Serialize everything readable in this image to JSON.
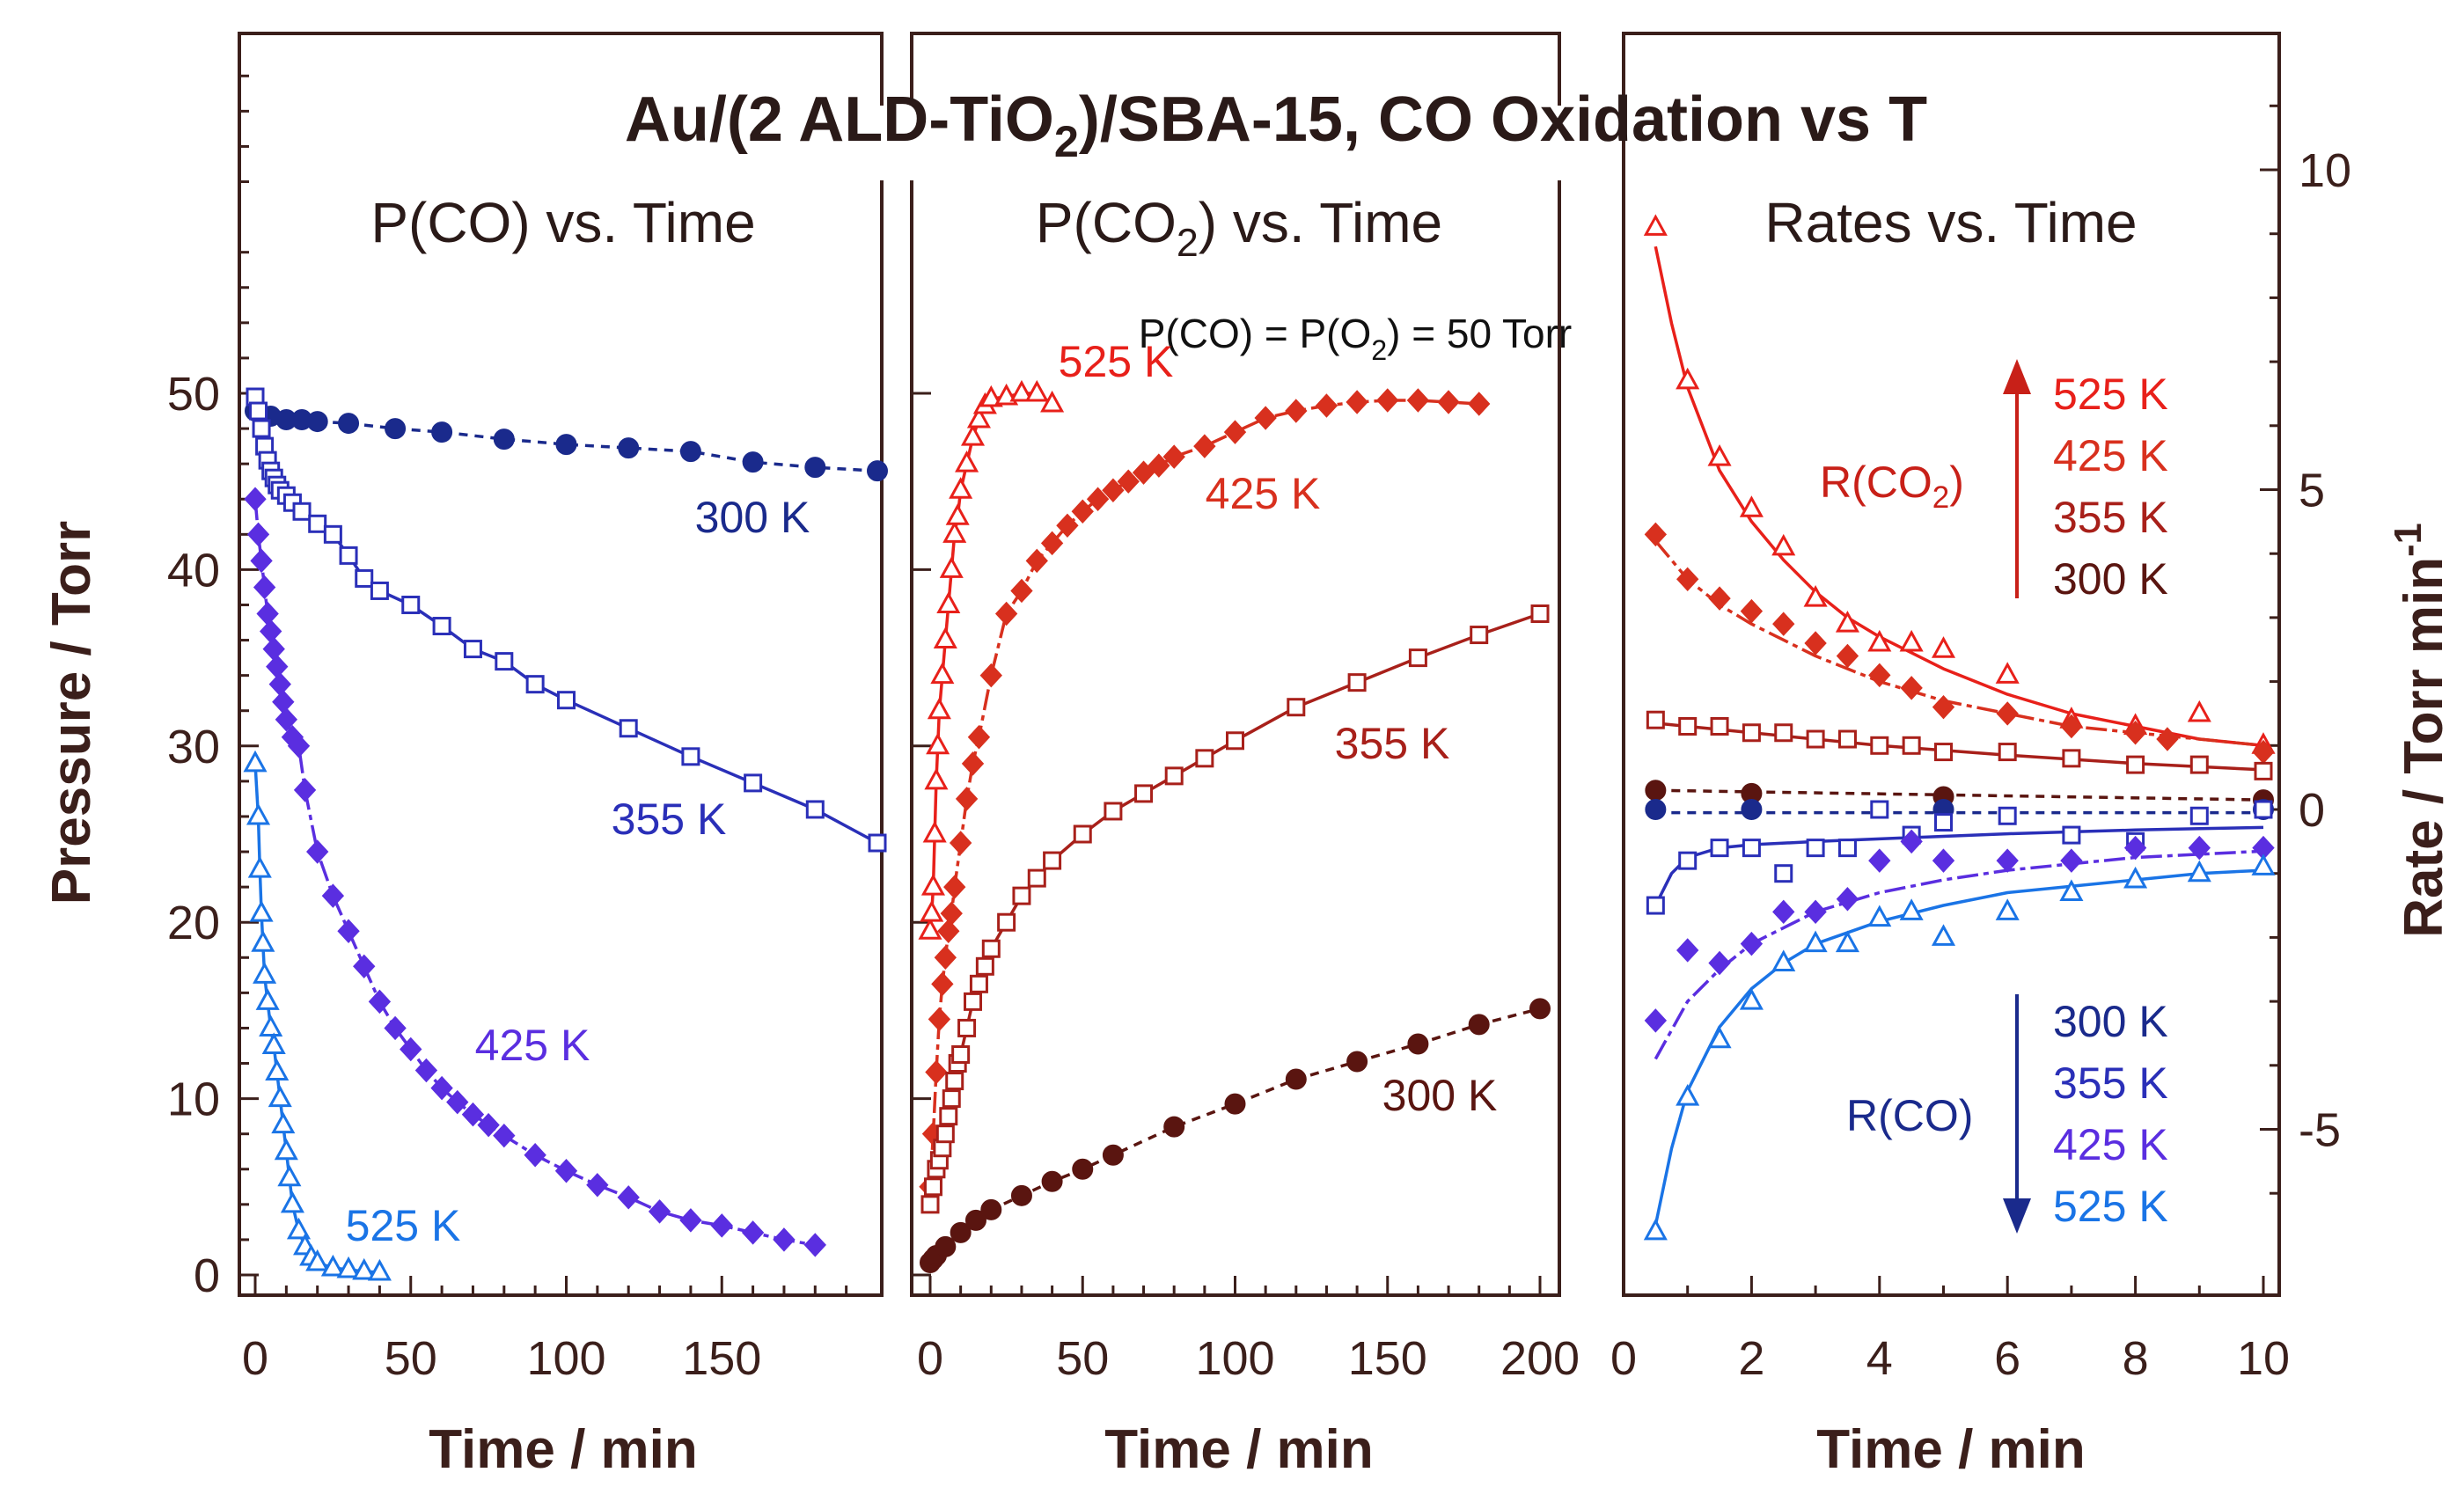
{
  "figure": {
    "title_pre": "Au/(2 ALD-TiO",
    "title_sub": "2",
    "title_post": ")/SBA-15, CO Oxidation vs T",
    "condition_pre": "P(CO) = P(O",
    "condition_sub": "2",
    "condition_post": ") = 50 Torr",
    "left_ylabel": "Pressure / Torr",
    "right_ylabel_pre": "Rate / Torr min",
    "right_ylabel_sup": "-1",
    "legend_co2_pre": "R(CO",
    "legend_co2_sub": "2",
    "legend_co2_post": ")",
    "legend_co2_temps": [
      "525 K",
      "425 K",
      "355 K",
      "300 K"
    ],
    "legend_co": "R(CO)",
    "legend_co_temps": [
      "300 K",
      "355 K",
      "425 K",
      "525 K"
    ]
  },
  "colors": {
    "axis": "#3b1f1b",
    "co_300": "#1a2a8c",
    "co_355": "#2a2fb8",
    "co_425": "#5a2ee0",
    "co_525": "#1a74e6",
    "co2_525": "#e8201a",
    "co2_425": "#d8301e",
    "co2_355": "#a8201a",
    "co2_300": "#5a1510"
  },
  "chart_data": [
    {
      "type": "line",
      "title": "P(CO) vs. Time",
      "xlabel": "Time / min",
      "ylabel": "Pressure / Torr",
      "xlim": [
        -5,
        200
      ],
      "ylim": [
        -1,
        70
      ],
      "xticks": [
        "0",
        "50",
        "100",
        "150"
      ],
      "yticks": [
        "0",
        "10",
        "20",
        "30",
        "40",
        "50"
      ],
      "series": [
        {
          "name": "300 K",
          "label": "300 K",
          "marker": "circle",
          "color": "#1a2a8c",
          "dash": "10,8",
          "x": [
            0,
            2,
            5,
            10,
            15,
            20,
            30,
            45,
            60,
            80,
            100,
            120,
            140,
            160,
            180,
            200
          ],
          "y": [
            49,
            48.8,
            48.7,
            48.5,
            48.5,
            48.4,
            48.3,
            48.0,
            47.8,
            47.4,
            47.1,
            46.9,
            46.7,
            46.1,
            45.8,
            45.6
          ]
        },
        {
          "name": "355 K",
          "label": "355 K",
          "marker": "square",
          "color": "#2a2fb8",
          "dash": "",
          "x": [
            0,
            1,
            2,
            3,
            4,
            5,
            6,
            7,
            8,
            10,
            12,
            15,
            20,
            25,
            30,
            35,
            40,
            50,
            60,
            70,
            80,
            90,
            100,
            120,
            140,
            160,
            180,
            200
          ],
          "y": [
            49.8,
            49.0,
            48.0,
            47.0,
            46.2,
            45.6,
            45.2,
            44.8,
            44.5,
            44.2,
            43.8,
            43.3,
            42.6,
            42.0,
            40.8,
            39.5,
            38.8,
            38.0,
            36.8,
            35.5,
            34.8,
            33.5,
            32.6,
            31.0,
            29.4,
            27.9,
            26.4,
            24.5
          ]
        },
        {
          "name": "425 K",
          "label": "425 K",
          "marker": "diamond",
          "color": "#5a2ee0",
          "dash": "24,6,6,6",
          "x": [
            0,
            1,
            2,
            3,
            4,
            5,
            6,
            7,
            8,
            9,
            10,
            12,
            14,
            16,
            20,
            25,
            30,
            35,
            40,
            45,
            50,
            55,
            60,
            65,
            70,
            75,
            80,
            90,
            100,
            110,
            120,
            130,
            140,
            150,
            160,
            170,
            180
          ],
          "y": [
            44,
            42,
            40.5,
            39,
            37.5,
            36.5,
            35.5,
            34.5,
            33.5,
            32.5,
            31.5,
            30.5,
            30,
            27.5,
            24,
            21.5,
            19.5,
            17.5,
            15.5,
            14.0,
            12.8,
            11.6,
            10.6,
            9.8,
            9.1,
            8.5,
            7.9,
            6.8,
            5.9,
            5.1,
            4.4,
            3.6,
            3.1,
            2.8,
            2.4,
            2.0,
            1.7
          ]
        },
        {
          "name": "525 K",
          "label": "525 K",
          "marker": "triangle",
          "color": "#1a74e6",
          "dash": "",
          "x": [
            0,
            1,
            1.5,
            2,
            2.5,
            3,
            4,
            5,
            6,
            7,
            8,
            9,
            10,
            11,
            12,
            14,
            16,
            18,
            20,
            25,
            30,
            35,
            40
          ],
          "y": [
            29,
            26,
            23,
            20.5,
            18.8,
            17,
            15.5,
            14,
            13,
            11.5,
            10,
            8.5,
            7,
            5.5,
            4,
            2.5,
            1.6,
            1.0,
            0.7,
            0.4,
            0.3,
            0.2,
            0.15
          ]
        }
      ]
    },
    {
      "type": "line",
      "title": "P(CO2) vs. Time",
      "title_pre": "P(CO",
      "title_sub": "2",
      "title_post": ") vs. Time",
      "xlabel": "Time / min",
      "xlim": [
        -5,
        200
      ],
      "ylim": [
        -1,
        70
      ],
      "xticks": [
        "0",
        "50",
        "100",
        "150",
        "200"
      ],
      "series": [
        {
          "name": "525 K",
          "label": "525 K",
          "marker": "triangle",
          "color": "#e8201a",
          "dash": "",
          "x": [
            0,
            0.5,
            1,
            1.5,
            2,
            2.5,
            3,
            4,
            5,
            6,
            7,
            8,
            9,
            10,
            12,
            14,
            16,
            18,
            20,
            25,
            30,
            35,
            40
          ],
          "y": [
            19.5,
            20.5,
            22,
            25,
            28,
            30,
            32,
            34,
            36,
            38,
            40,
            42,
            43,
            44.5,
            46,
            47.5,
            48.5,
            49.3,
            49.7,
            49.8,
            50,
            50,
            49.4
          ]
        },
        {
          "name": "425 K",
          "label": "425 K",
          "marker": "diamond",
          "color": "#d8301e",
          "dash": "24,6,6,6",
          "x": [
            0,
            1,
            2,
            3,
            4,
            5,
            6,
            7,
            8,
            10,
            12,
            14,
            16,
            20,
            25,
            30,
            35,
            40,
            45,
            50,
            55,
            60,
            65,
            70,
            75,
            80,
            90,
            100,
            110,
            120,
            130,
            140,
            150,
            160,
            170,
            180
          ],
          "y": [
            5,
            8,
            11.5,
            14.5,
            16.5,
            18,
            19.5,
            20.5,
            22,
            24.5,
            27,
            29,
            30.5,
            34,
            37.5,
            38.8,
            40.5,
            41.5,
            42.5,
            43.3,
            44,
            44.5,
            45,
            45.5,
            45.9,
            46.4,
            47.0,
            47.8,
            48.6,
            49.0,
            49.3,
            49.5,
            49.6,
            49.6,
            49.5,
            49.4
          ]
        },
        {
          "name": "355 K",
          "label": "355 K",
          "marker": "square",
          "color": "#a8201a",
          "dash": "",
          "x": [
            0,
            1,
            2,
            3,
            4,
            5,
            6,
            7,
            8,
            9,
            10,
            12,
            14,
            16,
            18,
            20,
            25,
            30,
            35,
            40,
            50,
            60,
            70,
            80,
            90,
            100,
            120,
            140,
            160,
            180,
            200
          ],
          "y": [
            4,
            5,
            6,
            6.5,
            7.2,
            8,
            9,
            10,
            11,
            12,
            12.5,
            14,
            15.5,
            16.5,
            17.5,
            18.5,
            20,
            21.5,
            22.5,
            23.5,
            25,
            26.3,
            27.3,
            28.3,
            29.3,
            30.3,
            32.2,
            33.6,
            35,
            36.3,
            37.5
          ]
        },
        {
          "name": "300 K",
          "label": "300 K",
          "marker": "circle",
          "color": "#5a1510",
          "dash": "10,8",
          "x": [
            0,
            1,
            2,
            5,
            10,
            15,
            20,
            30,
            40,
            50,
            60,
            80,
            100,
            120,
            140,
            160,
            180,
            200
          ],
          "y": [
            0.7,
            0.9,
            1.1,
            1.6,
            2.4,
            3.1,
            3.7,
            4.5,
            5.3,
            6.0,
            6.8,
            8.4,
            9.7,
            11.1,
            12.1,
            13.1,
            14.2,
            15.1
          ]
        }
      ]
    },
    {
      "type": "line",
      "title": "Rates vs. Time",
      "xlabel": "Time / min",
      "ylabel": "Rate / Torr min-1",
      "xlim": [
        0,
        10
      ],
      "ylim": [
        -6.8,
        12
      ],
      "xticks": [
        "0",
        "2",
        "4",
        "6",
        "8",
        "10"
      ],
      "yticks": [
        "-5",
        "0",
        "5",
        "10"
      ],
      "series": [
        {
          "name": "R(CO2) 525 K",
          "marker": "triangle",
          "color": "#e8201a",
          "dash": "",
          "x": [
            0.5,
            1,
            1.5,
            2,
            2.5,
            3,
            3.5,
            4,
            4.5,
            5,
            6,
            7,
            8,
            9,
            10
          ],
          "y": [
            9.1,
            6.7,
            5.5,
            4.7,
            4.1,
            3.3,
            2.9,
            2.6,
            2.6,
            2.5,
            2.1,
            1.4,
            1.3,
            1.5,
            1.0
          ],
          "fit_x": [
            0.5,
            0.75,
            1,
            1.5,
            2,
            2.5,
            3,
            3.5,
            4,
            5,
            6,
            7,
            8,
            9,
            10
          ],
          "fit_y": [
            8.8,
            7.6,
            6.6,
            5.3,
            4.5,
            3.9,
            3.4,
            3.0,
            2.7,
            2.2,
            1.8,
            1.5,
            1.3,
            1.1,
            1.0
          ]
        },
        {
          "name": "R(CO2) 425 K",
          "marker": "diamond",
          "color": "#d8301e",
          "dash": "24,6,6,6",
          "x": [
            0.5,
            1,
            1.5,
            2,
            2.5,
            3,
            3.5,
            4,
            4.5,
            5,
            6,
            7,
            8,
            8.5,
            10
          ],
          "y": [
            4.3,
            3.6,
            3.3,
            3.1,
            2.9,
            2.6,
            2.4,
            2.1,
            1.9,
            1.6,
            1.5,
            1.3,
            1.2,
            1.1,
            0.9
          ],
          "fit_x": [
            0.5,
            1,
            1.5,
            2,
            3,
            4,
            5,
            6,
            7,
            8,
            9,
            10
          ],
          "fit_y": [
            4.2,
            3.6,
            3.2,
            2.9,
            2.4,
            2.0,
            1.7,
            1.5,
            1.3,
            1.2,
            1.1,
            1.0
          ]
        },
        {
          "name": "R(CO2) 355 K",
          "marker": "square",
          "color": "#a8201a",
          "dash": "",
          "x": [
            0.5,
            1,
            1.5,
            2,
            2.5,
            3,
            3.5,
            4,
            4.5,
            5,
            6,
            7,
            8,
            9,
            10
          ],
          "y": [
            1.4,
            1.3,
            1.3,
            1.2,
            1.2,
            1.1,
            1.1,
            1.0,
            1.0,
            0.9,
            0.9,
            0.8,
            0.7,
            0.7,
            0.6
          ],
          "fit_x": [
            0.5,
            2,
            4,
            6,
            8,
            10
          ],
          "fit_y": [
            1.35,
            1.2,
            1.0,
            0.85,
            0.72,
            0.62
          ]
        },
        {
          "name": "R(CO2) 300 K",
          "marker": "circle",
          "color": "#5a1510",
          "dash": "10,8",
          "x": [
            0.5,
            2,
            5,
            10
          ],
          "y": [
            0.3,
            0.25,
            0.2,
            0.15
          ],
          "fit_x": [
            0.5,
            10
          ],
          "fit_y": [
            0.3,
            0.15
          ]
        },
        {
          "name": "R(CO) 300 K",
          "marker": "circle",
          "color": "#1a2a8c",
          "dash": "10,8",
          "x": [
            0.5,
            2,
            5,
            10
          ],
          "y": [
            0.0,
            0.0,
            0.0,
            0.0
          ],
          "fit_x": [
            0.5,
            10
          ],
          "fit_y": [
            -0.05,
            -0.05
          ]
        },
        {
          "name": "R(CO) 355 K",
          "marker": "square",
          "color": "#2a2fb8",
          "dash": "",
          "x": [
            0.5,
            1,
            1.5,
            2,
            2.5,
            3,
            3.5,
            4,
            4.5,
            5,
            6,
            7,
            8,
            9,
            10
          ],
          "y": [
            -1.5,
            -0.8,
            -0.6,
            -0.6,
            -1.0,
            -0.6,
            -0.6,
            0.0,
            -0.4,
            -0.2,
            -0.1,
            -0.4,
            -0.5,
            -0.1,
            0.0
          ],
          "fit_x": [
            0.5,
            0.75,
            1,
            1.5,
            2,
            3,
            4,
            5,
            6,
            7,
            8,
            9,
            10
          ],
          "fit_y": [
            -1.5,
            -1.0,
            -0.75,
            -0.6,
            -0.55,
            -0.5,
            -0.46,
            -0.42,
            -0.38,
            -0.35,
            -0.32,
            -0.3,
            -0.28
          ]
        },
        {
          "name": "R(CO) 425 K",
          "marker": "diamond",
          "color": "#5a2ee0",
          "dash": "24,6,6,6",
          "x": [
            0.5,
            1,
            1.5,
            2,
            2.5,
            3,
            3.5,
            4,
            4.5,
            5,
            6,
            7,
            8,
            9,
            10
          ],
          "y": [
            -3.3,
            -2.2,
            -2.4,
            -2.1,
            -1.6,
            -1.6,
            -1.4,
            -0.8,
            -0.5,
            -0.8,
            -0.8,
            -0.8,
            -0.6,
            -0.6,
            -0.6
          ],
          "fit_x": [
            0.5,
            1,
            1.5,
            2,
            3,
            4,
            5,
            6,
            7,
            8,
            9,
            10
          ],
          "fit_y": [
            -3.9,
            -3.0,
            -2.5,
            -2.1,
            -1.6,
            -1.3,
            -1.1,
            -0.95,
            -0.85,
            -0.75,
            -0.7,
            -0.65
          ]
        },
        {
          "name": "R(CO) 525 K",
          "marker": "triangle",
          "color": "#1a74e6",
          "dash": "",
          "x": [
            0.5,
            1,
            1.5,
            2,
            2.5,
            3,
            3.5,
            4,
            4.5,
            5,
            6,
            7,
            8,
            9,
            10
          ],
          "y": [
            -6.6,
            -4.5,
            -3.6,
            -3.0,
            -2.4,
            -2.1,
            -2.1,
            -1.7,
            -1.6,
            -2.0,
            -1.6,
            -1.3,
            -1.1,
            -1.0,
            -0.9
          ],
          "fit_x": [
            0.5,
            0.75,
            1,
            1.5,
            2,
            2.5,
            3,
            4,
            5,
            6,
            7,
            8,
            9,
            10
          ],
          "fit_y": [
            -6.5,
            -5.3,
            -4.4,
            -3.4,
            -2.8,
            -2.4,
            -2.1,
            -1.75,
            -1.5,
            -1.3,
            -1.2,
            -1.1,
            -1.0,
            -0.95
          ]
        }
      ]
    }
  ]
}
